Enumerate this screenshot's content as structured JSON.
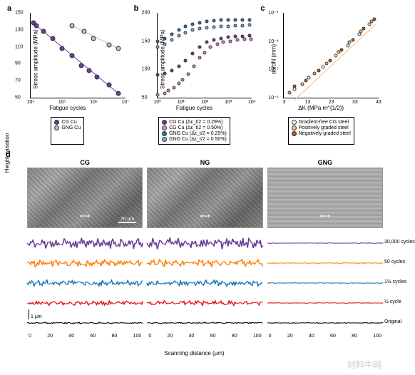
{
  "panels": {
    "a": "a",
    "b": "b",
    "c": "c",
    "d": "d"
  },
  "axis_labels": {
    "stress_amp": "Stress amplitude (MPa)",
    "fatigue_cycles": "Fatigue cycles",
    "dadn": "da/dN (mm)",
    "dk": "ΔK (MPa m^{1/2})",
    "scan_dist": "Scanning distance (μm)",
    "height_var": "Height variation"
  },
  "colors": {
    "cg_cu": "#6a3d9a",
    "gng_cu": "#cab2d6",
    "cg29": "#6a3d9a",
    "cg50": "#e78ac3",
    "gng29": "#1f78b4",
    "gng50": "#80b1d3",
    "cg_steel": "#ffffff",
    "pos_steel": "#fdbf6f",
    "neg_steel": "#b15928",
    "t30000": "#6a3d9a",
    "t50": "#ff7f00",
    "t1p5": "#1f78b4",
    "t0p5": "#e31a1c",
    "orig": "#000000",
    "axis": "#000000",
    "fitline": "#6a3d9a"
  },
  "chart_a": {
    "type": "scatter-log",
    "xlim": [
      10000.0,
      10000000.0
    ],
    "ylim": [
      50,
      150
    ],
    "xticks": [
      "10⁴",
      "10⁵",
      "10⁶",
      "10⁷"
    ],
    "yticks": [
      50,
      70,
      90,
      110,
      130,
      150
    ],
    "series": [
      {
        "name": "CG Cu",
        "color": "#6a3d9a",
        "pts": [
          [
            12000.0,
            138
          ],
          [
            15000.0,
            135
          ],
          [
            25000.0,
            128
          ],
          [
            50000.0,
            120
          ],
          [
            100000.0,
            108
          ],
          [
            200000.0,
            100
          ],
          [
            400000.0,
            88
          ],
          [
            700000.0,
            82
          ],
          [
            1300000.0,
            74
          ],
          [
            3000000.0,
            65
          ],
          [
            6000000.0,
            55
          ]
        ]
      },
      {
        "name": "GNG Cu",
        "color": "#cab2d6",
        "pts": [
          [
            200000.0,
            135
          ],
          [
            500000.0,
            128
          ],
          [
            1000000.0,
            120
          ],
          [
            3000000.0,
            112
          ],
          [
            6000000.0,
            108
          ]
        ]
      }
    ]
  },
  "chart_b": {
    "type": "scatter-log",
    "xlim": [
      1,
      10000.0
    ],
    "ylim": [
      50,
      200
    ],
    "xticks": [
      "10⁰",
      "10¹",
      "10²",
      "10³",
      "10⁴"
    ],
    "yticks": [
      50,
      100,
      150,
      200
    ],
    "series": [
      {
        "color": "#e78ac3",
        "pts": [
          [
            1,
            55
          ],
          [
            2,
            58
          ],
          [
            3,
            62
          ],
          [
            5,
            68
          ],
          [
            8,
            75
          ],
          [
            12,
            82
          ],
          [
            20,
            92
          ],
          [
            35,
            105
          ],
          [
            60,
            120
          ],
          [
            100,
            130
          ],
          [
            180,
            140
          ],
          [
            350,
            145
          ],
          [
            600,
            148
          ],
          [
            1200,
            150
          ],
          [
            2500,
            152
          ],
          [
            5000,
            153
          ],
          [
            9000,
            154
          ]
        ]
      },
      {
        "color": "#6a3d9a",
        "pts": [
          [
            1,
            90
          ],
          [
            2,
            93
          ],
          [
            4,
            98
          ],
          [
            8,
            105
          ],
          [
            15,
            115
          ],
          [
            30,
            128
          ],
          [
            60,
            140
          ],
          [
            120,
            148
          ],
          [
            250,
            152
          ],
          [
            500,
            155
          ],
          [
            1000,
            157
          ],
          [
            2000,
            158
          ],
          [
            4000,
            159
          ],
          [
            8000,
            160
          ]
        ]
      },
      {
        "color": "#80b1d3",
        "pts": [
          [
            1,
            140
          ],
          [
            2,
            145
          ],
          [
            4,
            152
          ],
          [
            8,
            160
          ],
          [
            15,
            165
          ],
          [
            30,
            170
          ],
          [
            60,
            172
          ],
          [
            120,
            174
          ],
          [
            250,
            175
          ],
          [
            500,
            176
          ],
          [
            1000,
            176
          ],
          [
            2000,
            177
          ],
          [
            4000,
            177
          ],
          [
            8000,
            178
          ]
        ]
      },
      {
        "color": "#1f78b4",
        "pts": [
          [
            1,
            150
          ],
          [
            2,
            155
          ],
          [
            4,
            162
          ],
          [
            8,
            170
          ],
          [
            15,
            176
          ],
          [
            30,
            180
          ],
          [
            60,
            183
          ],
          [
            120,
            185
          ],
          [
            250,
            186
          ],
          [
            500,
            187
          ],
          [
            1000,
            187
          ],
          [
            2000,
            188
          ],
          [
            4000,
            188
          ],
          [
            8000,
            188
          ]
        ]
      }
    ]
  },
  "chart_c": {
    "type": "scatter-loglog",
    "xlim": [
      3,
      43
    ],
    "ylim": [
      1e-06,
      0.001
    ],
    "xticks": [
      "3",
      "13",
      "23",
      "33",
      "43"
    ],
    "yticks": [
      "10⁻⁶",
      "10⁻⁵",
      "10⁻⁴",
      "10⁻³"
    ],
    "series": [
      {
        "color": "#ffffff",
        "pts": [
          [
            4,
            2e-06
          ],
          [
            6,
            5e-06
          ],
          [
            9,
            1.2e-05
          ],
          [
            13,
            3e-05
          ],
          [
            18,
            7e-05
          ],
          [
            25,
            0.00018
          ],
          [
            33,
            0.0004
          ]
        ]
      },
      {
        "color": "#fdbf6f",
        "pts": [
          [
            3.5,
            1.5e-06
          ],
          [
            5,
            3e-06
          ],
          [
            7,
            7e-06
          ],
          [
            10,
            1.6e-05
          ],
          [
            14,
            4e-05
          ],
          [
            19,
            9e-05
          ],
          [
            26,
            0.00022
          ],
          [
            35,
            0.0005
          ]
        ]
      },
      {
        "color": "#b15928",
        "pts": [
          [
            4,
            2.5e-06
          ],
          [
            5.5,
            4e-06
          ],
          [
            8,
            9e-06
          ],
          [
            11,
            2e-05
          ],
          [
            15,
            5e-05
          ],
          [
            21,
            0.00011
          ],
          [
            28,
            0.00028
          ],
          [
            38,
            0.0006
          ]
        ]
      }
    ],
    "guide_lines": [
      {
        "color": "#fdbf6f",
        "x1": 4,
        "y1": 8e-07,
        "x2": 40,
        "y2": 0.0004
      }
    ]
  },
  "legend_a": [
    {
      "color": "#6a3d9a",
      "label": "CG Cu"
    },
    {
      "color": "#cab2d6",
      "label": "GNG Cu"
    }
  ],
  "legend_b": [
    {
      "color": "#6a3d9a",
      "label": "CG Cu (Δε_t/2 = 0.29%)"
    },
    {
      "color": "#e78ac3",
      "label": "CG Cu (Δε_t/2 = 0.50%)"
    },
    {
      "color": "#1f78b4",
      "label": "GNG Cu (Δε_t/2 = 0.29%)"
    },
    {
      "color": "#80b1d3",
      "label": "GNG Cu (Δε_t/2 = 0.50%)"
    }
  ],
  "legend_c": [
    {
      "color": "#ffffff",
      "label": "Gradient-free CG steel"
    },
    {
      "color": "#fdbf6f",
      "label": "Positively graded steel"
    },
    {
      "color": "#b15928",
      "label": "Negatively graded steel"
    }
  ],
  "panel_d": {
    "cols": [
      {
        "title": "CG",
        "smooth": false
      },
      {
        "title": "NG",
        "smooth": false
      },
      {
        "title": "GNG",
        "smooth": true
      }
    ],
    "scalebar": "20 μm",
    "micro_arrow": "⟷",
    "height_bar": "1 μm",
    "xticks": [
      0,
      20,
      40,
      60,
      80,
      100
    ],
    "traces": [
      {
        "color": "#6a3d9a",
        "label": "30,000 cycles",
        "amp_rough": 14,
        "amp_smooth": 1
      },
      {
        "color": "#ff7f00",
        "label": "50 cycles",
        "amp_rough": 10,
        "amp_smooth": 1
      },
      {
        "color": "#1f78b4",
        "label": "1½ cycles",
        "amp_rough": 8,
        "amp_smooth": 1
      },
      {
        "color": "#e31a1c",
        "label": "½ cycle",
        "amp_rough": 6,
        "amp_smooth": 1
      },
      {
        "color": "#000000",
        "label": "Original",
        "amp_rough": 2,
        "amp_smooth": 1
      }
    ]
  },
  "watermark": "材料牛网"
}
